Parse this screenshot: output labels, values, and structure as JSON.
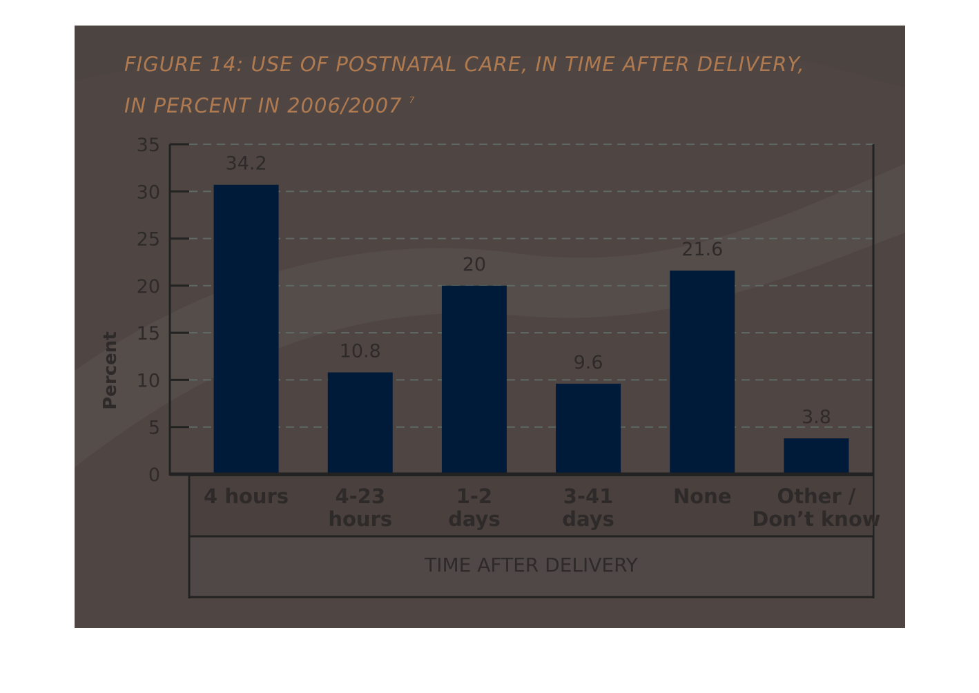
{
  "figure": {
    "title_line1": "FIGURE 14: USE OF POSTNATAL CARE, IN TIME AFTER DELIVERY,",
    "title_line2": "IN PERCENT IN 2006/2007",
    "title_footnote": "7"
  },
  "colors": {
    "background": "#4f4643",
    "bar": "#001a3a",
    "bar_highlight": "#0a74f0",
    "title": "#b07a50",
    "text": "#2e2a29",
    "grid": "#5f6a66"
  },
  "chart_data": {
    "type": "bar",
    "title": "FIGURE 14: USE OF POSTNATAL CARE, IN TIME AFTER DELIVERY, IN PERCENT IN 2006/2007",
    "categories": [
      [
        "4 hours"
      ],
      [
        "4-23",
        "hours"
      ],
      [
        "1-2",
        "days"
      ],
      [
        "3-41",
        "days"
      ],
      [
        "None"
      ],
      [
        "Other /",
        "Don’t know"
      ]
    ],
    "series": [
      {
        "values": [
          34.2,
          10.8,
          20,
          9.6,
          21.6,
          3.8
        ],
        "value_labels": [
          "34.2",
          "10.8",
          "20",
          "9.6",
          "21.6",
          "3.8"
        ]
      }
    ],
    "xlabel": "TIME AFTER DELIVERY",
    "ylabel": "Percent",
    "ylim": [
      0,
      35
    ],
    "yticks": [
      "0",
      "5",
      "10",
      "15",
      "20",
      "25",
      "30",
      "35"
    ],
    "grid": true
  }
}
